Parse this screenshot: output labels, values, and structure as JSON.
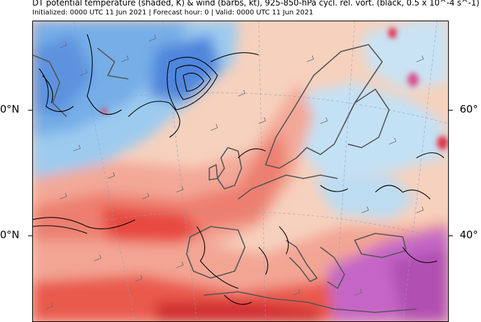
{
  "header": {
    "title": "DT potential temperature (shaded, K) & wind (barbs, kt), 925-850-hPa cycl. rel. vort. (black, 0.5 x 10^-4 s^-1)",
    "subtitle": "Initialized: 0000 UTC 11 Jun 2021 | Forecast hour: 0 | Valid: 0000 UTC 11 Jun 2021"
  },
  "map": {
    "lat_labels": {
      "left_60": "0°N",
      "left_40": "0°N",
      "right_60": "60°",
      "right_40": "40°"
    },
    "colors": {
      "cold_deep": "#3a6fd0",
      "cold": "#7fb0ea",
      "cool": "#b6dcf4",
      "neutral": "#f5d3bf",
      "warm": "#f29c8a",
      "hot": "#e8483f",
      "very_hot": "#c02428",
      "purple": "#c25fc3",
      "coast": "#555555",
      "vorticity": "#000000"
    }
  }
}
